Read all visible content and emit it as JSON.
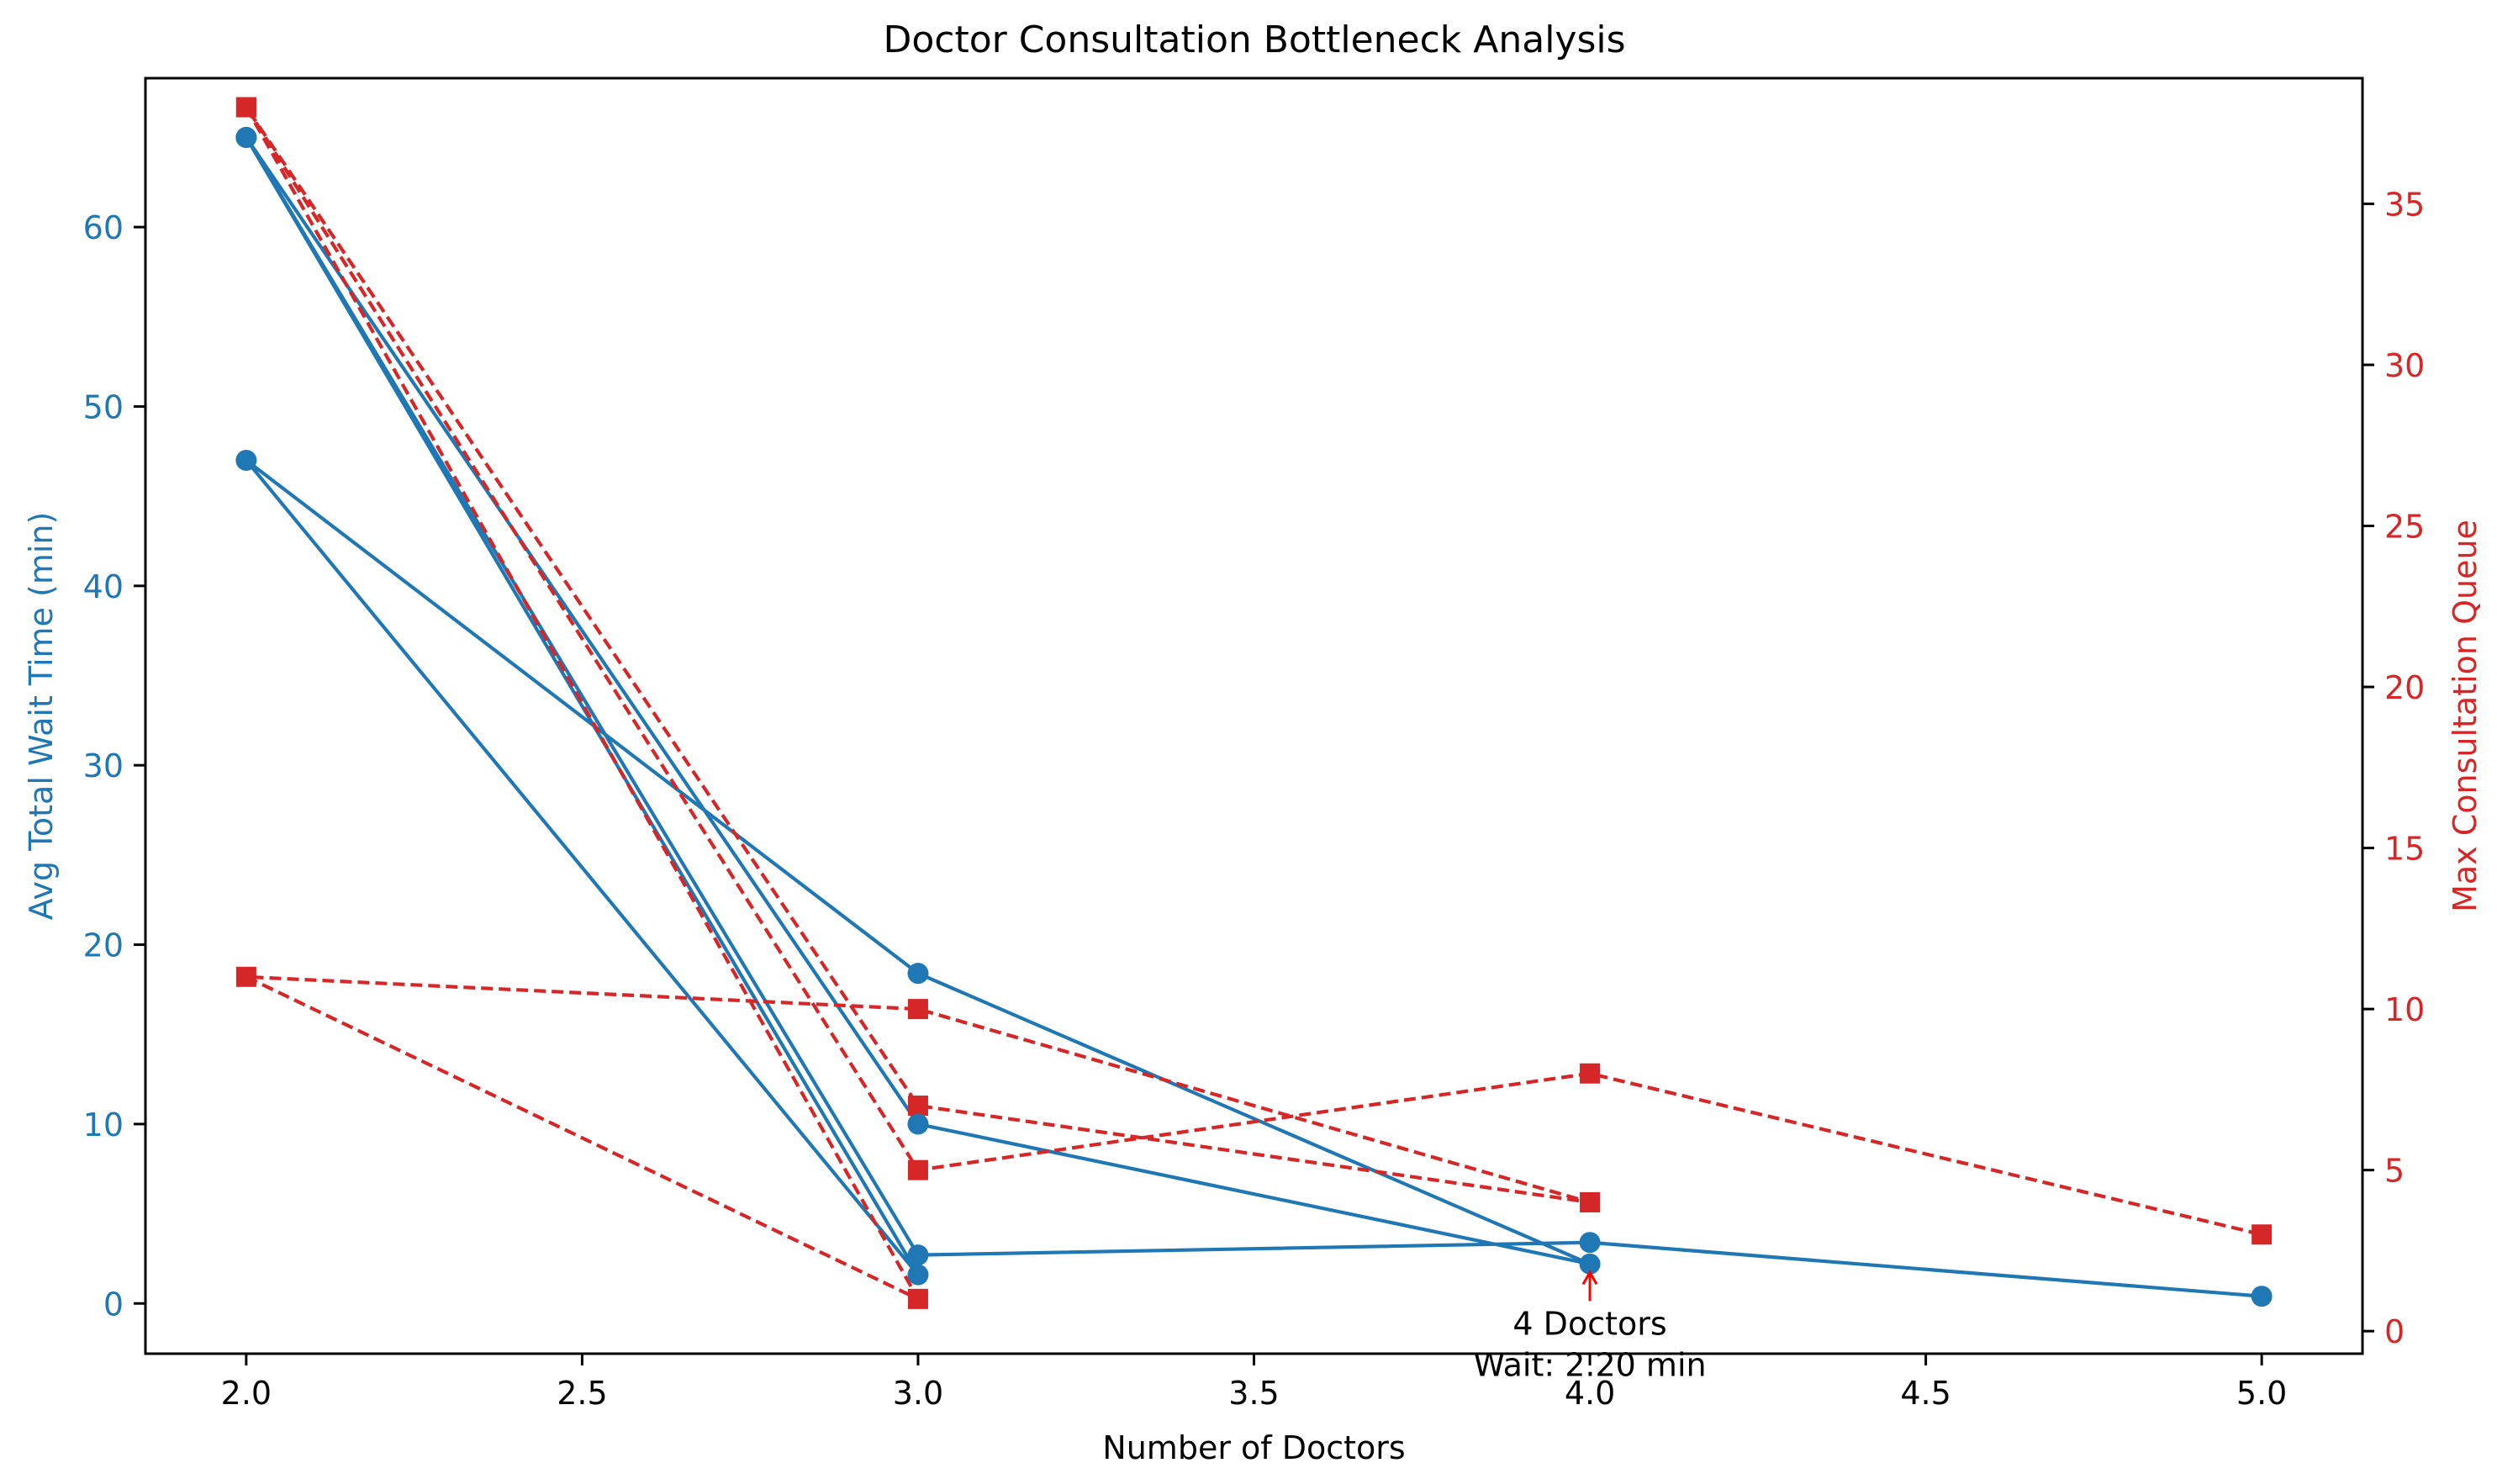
{
  "chart_data": {
    "type": "line",
    "title": "Doctor Consultation Bottleneck Analysis",
    "xlabel": "Number of Doctors",
    "ylabel_left": "Avg Total Wait Time (min)",
    "ylabel_right": "Max Consultation Queue",
    "xlim": [
      1.85,
      5.15
    ],
    "ylim_left": [
      -2.8,
      68.3
    ],
    "ylim_right": [
      -0.7,
      38.9
    ],
    "x_ticks": [
      2.0,
      2.5,
      3.0,
      3.5,
      4.0,
      4.5,
      5.0
    ],
    "x_tick_labels": [
      "2.0",
      "2.5",
      "3.0",
      "3.5",
      "4.0",
      "4.5",
      "5.0"
    ],
    "y_left_ticks": [
      0,
      10,
      20,
      30,
      40,
      50,
      60
    ],
    "y_left_tick_labels": [
      "0",
      "10",
      "20",
      "30",
      "40",
      "50",
      "60"
    ],
    "y_right_ticks": [
      0,
      5,
      10,
      15,
      20,
      25,
      30,
      35
    ],
    "y_right_tick_labels": [
      "0",
      "5",
      "10",
      "15",
      "20",
      "25",
      "30",
      "35"
    ],
    "grid": false,
    "colors": {
      "wait": "#1f77b4",
      "queue": "#d62728",
      "axes": "#000000",
      "annotation": "#ff0000"
    },
    "wait_path": {
      "x": [
        2,
        3,
        2,
        3,
        4,
        3,
        2,
        3,
        4,
        5
      ],
      "y": [
        65.0,
        1.6,
        47.0,
        18.4,
        2.2,
        10.0,
        65.0,
        2.7,
        3.4,
        0.4
      ]
    },
    "queue_path": {
      "x": [
        2,
        3,
        2,
        3,
        4,
        3,
        2,
        3,
        4,
        5
      ],
      "y": [
        38,
        1,
        11,
        10,
        4,
        7,
        38,
        5,
        8,
        3
      ]
    },
    "annotation": {
      "x": 4.0,
      "y_point": 2.2,
      "line1": "4 Doctors",
      "line2": "Wait: 2.20 min"
    }
  }
}
